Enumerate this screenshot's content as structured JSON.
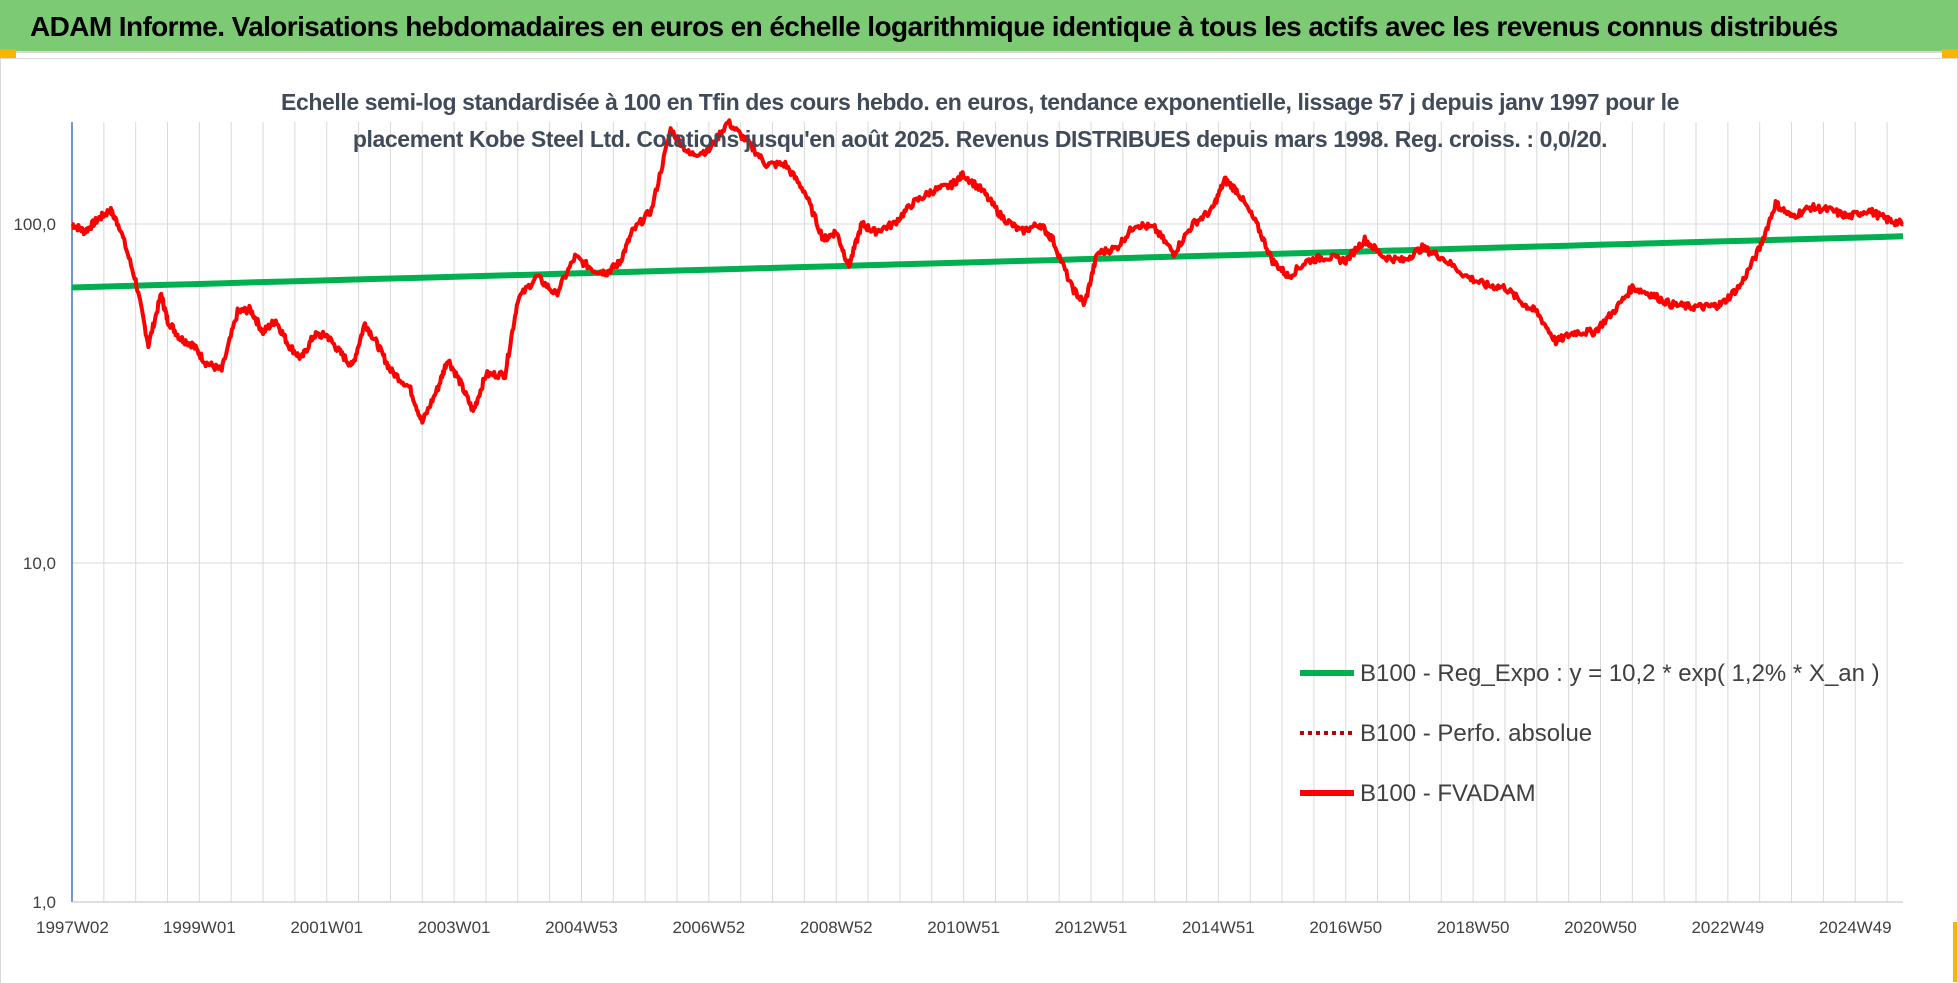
{
  "header": {
    "title": "ADAM Informe. Valorisations hebdomadaires en euros en échelle logarithmique identique à tous les actifs avec les revenus connus distribués"
  },
  "colors": {
    "header_bg": "#7ccb74",
    "corner": "#f7b500",
    "series_fvadam": "#ff0000",
    "series_perfo": "#c00000",
    "series_reg": "#00b050",
    "grid": "#d9d9d9",
    "axis": "#4472c4"
  },
  "chart_data": {
    "type": "line",
    "title_line1": "Echelle semi-log standardisée à 100 en Tfin des cours hebdo. en euros, tendance exponentielle, lissage 57 j depuis janv 1997 pour le",
    "title_line2": "placement Kobe Steel Ltd. Cotations jusqu'en août 2025. Revenus DISTRIBUES depuis mars 1998. Reg. croiss. : 0,0/20.",
    "y_scale": "log",
    "ylim": [
      1,
      200
    ],
    "y_ticks": [
      {
        "value": 1,
        "label": "1,0"
      },
      {
        "value": 10,
        "label": "10,0"
      },
      {
        "value": 100,
        "label": "100,0"
      }
    ],
    "x_range_years": [
      1997.0,
      2025.75
    ],
    "x_ticks": [
      {
        "year": 1997.0,
        "label": "1997W02"
      },
      {
        "year": 1999.0,
        "label": "1999W01"
      },
      {
        "year": 2001.0,
        "label": "2001W01"
      },
      {
        "year": 2003.0,
        "label": "2003W01"
      },
      {
        "year": 2005.0,
        "label": "2004W53"
      },
      {
        "year": 2007.0,
        "label": "2006W52"
      },
      {
        "year": 2009.0,
        "label": "2008W52"
      },
      {
        "year": 2011.0,
        "label": "2010W51"
      },
      {
        "year": 2013.0,
        "label": "2012W51"
      },
      {
        "year": 2015.0,
        "label": "2014W51"
      },
      {
        "year": 2017.0,
        "label": "2016W50"
      },
      {
        "year": 2019.0,
        "label": "2018W50"
      },
      {
        "year": 2021.0,
        "label": "2020W50"
      },
      {
        "year": 2023.0,
        "label": "2022W49"
      },
      {
        "year": 2025.0,
        "label": "2024W49"
      }
    ],
    "grid_x": true,
    "grid_y": true,
    "legend_position": "right",
    "legend": [
      {
        "label": "B100 - Reg_Expo : y = 10,2 * exp( 1,2% *  X_an )",
        "style": "solid-green"
      },
      {
        "label": "B100 - Perfo. absolue",
        "style": "dotted-red"
      },
      {
        "label": "B100 - FVADAM",
        "style": "solid-red"
      }
    ],
    "series": [
      {
        "name": "B100 - Reg_Expo : y = 10,2 * exp( 1,2% *  X_an )",
        "type": "trend",
        "x": [
          1997.0,
          2025.75
        ],
        "y": [
          65,
          92
        ]
      },
      {
        "name": "B100 - FVADAM",
        "x": [
          1997.0,
          1997.2,
          1997.4,
          1997.6,
          1997.75,
          1998.0,
          1998.2,
          1998.4,
          1998.5,
          1998.7,
          1998.9,
          1999.1,
          1999.35,
          1999.6,
          1999.8,
          2000.0,
          2000.2,
          2000.4,
          2000.6,
          2000.8,
          2001.0,
          2001.2,
          2001.4,
          2001.6,
          2001.8,
          2002.0,
          2002.3,
          2002.5,
          2002.75,
          2002.9,
          2003.1,
          2003.3,
          2003.5,
          2003.8,
          2004.0,
          2004.3,
          2004.6,
          2004.9,
          2005.2,
          2005.4,
          2005.6,
          2005.8,
          2006.1,
          2006.4,
          2006.7,
          2007.0,
          2007.3,
          2007.6,
          2007.9,
          2008.2,
          2008.5,
          2008.8,
          2009.0,
          2009.2,
          2009.4,
          2009.6,
          2009.9,
          2010.2,
          2010.5,
          2010.8,
          2011.0,
          2011.3,
          2011.6,
          2011.9,
          2012.2,
          2012.4,
          2012.7,
          2012.9,
          2013.1,
          2013.4,
          2013.7,
          2014.0,
          2014.3,
          2014.6,
          2014.9,
          2015.1,
          2015.3,
          2015.6,
          2015.85,
          2016.1,
          2016.4,
          2016.7,
          2017.0,
          2017.3,
          2017.6,
          2017.9,
          2018.2,
          2018.5,
          2018.9,
          2019.2,
          2019.5,
          2019.8,
          2020.0,
          2020.3,
          2020.6,
          2020.9,
          2021.2,
          2021.5,
          2021.8,
          2022.1,
          2022.4,
          2022.7,
          2022.9,
          2023.2,
          2023.5,
          2023.75,
          2024.0,
          2024.3,
          2024.6,
          2024.9,
          2025.2,
          2025.5,
          2025.75
        ],
        "y": [
          100,
          95,
          103,
          110,
          98,
          68,
          44,
          62,
          52,
          46,
          44,
          39,
          37,
          55,
          56,
          48,
          52,
          44,
          40,
          47,
          47,
          42,
          38,
          51,
          44,
          37,
          33,
          26,
          33,
          40,
          34,
          28,
          36,
          36,
          60,
          70,
          62,
          80,
          73,
          72,
          77,
          95,
          110,
          190,
          160,
          165,
          200,
          175,
          150,
          150,
          125,
          90,
          95,
          75,
          100,
          95,
          100,
          115,
          125,
          130,
          140,
          125,
          105,
          95,
          100,
          90,
          65,
          58,
          82,
          85,
          100,
          97,
          82,
          100,
          110,
          135,
          125,
          100,
          78,
          70,
          78,
          80,
          78,
          90,
          80,
          78,
          85,
          80,
          70,
          66,
          65,
          58,
          55,
          45,
          48,
          48,
          55,
          65,
          62,
          58,
          57,
          57,
          58,
          66,
          85,
          115,
          105,
          112,
          110,
          105,
          110,
          103,
          100
        ]
      }
    ]
  }
}
